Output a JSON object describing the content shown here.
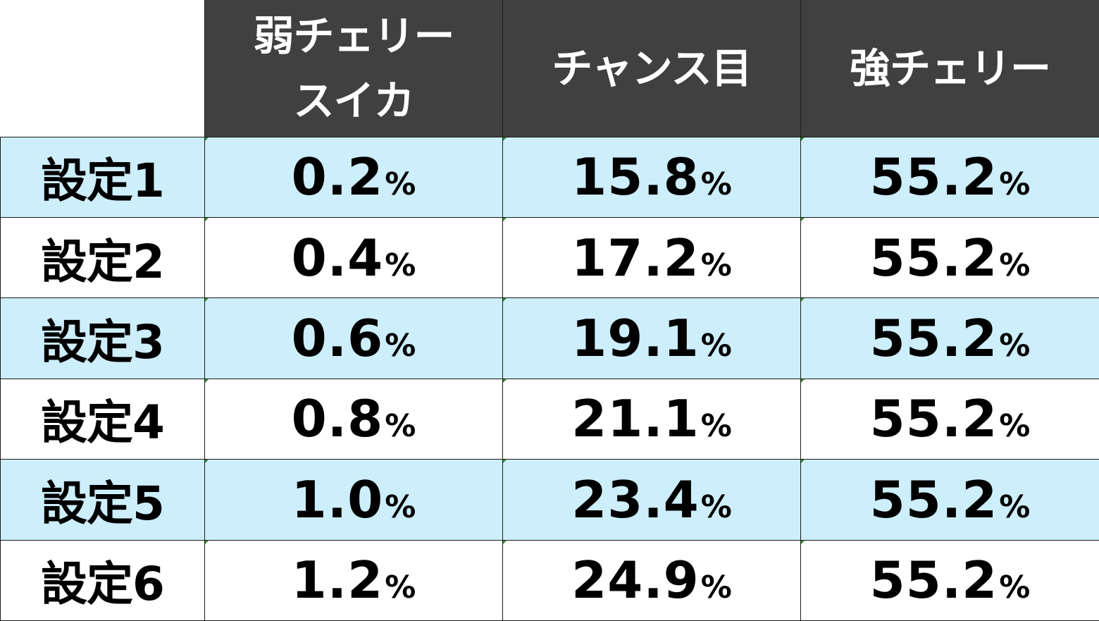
{
  "table": {
    "corner": "",
    "columns": [
      {
        "line1": "弱チェリー",
        "line2": "スイカ"
      },
      {
        "line1": "チャンス目",
        "line2": ""
      },
      {
        "line1": "強チェリー",
        "line2": ""
      }
    ],
    "unit": "%",
    "rows": [
      {
        "label": "設定1",
        "values": [
          "0.2",
          "15.8",
          "55.2"
        ]
      },
      {
        "label": "設定2",
        "values": [
          "0.4",
          "17.2",
          "55.2"
        ]
      },
      {
        "label": "設定3",
        "values": [
          "0.6",
          "19.1",
          "55.2"
        ]
      },
      {
        "label": "設定4",
        "values": [
          "0.8",
          "21.1",
          "55.2"
        ]
      },
      {
        "label": "設定5",
        "values": [
          "1.0",
          "23.4",
          "55.2"
        ]
      },
      {
        "label": "設定6",
        "values": [
          "1.2",
          "24.9",
          "55.2"
        ]
      }
    ]
  },
  "colors": {
    "header_bg": "#404040",
    "header_text": "#ffffff",
    "row_tint": "#cdeefb",
    "row_plain": "#ffffff",
    "corner_mark": "#2e8b2e"
  }
}
